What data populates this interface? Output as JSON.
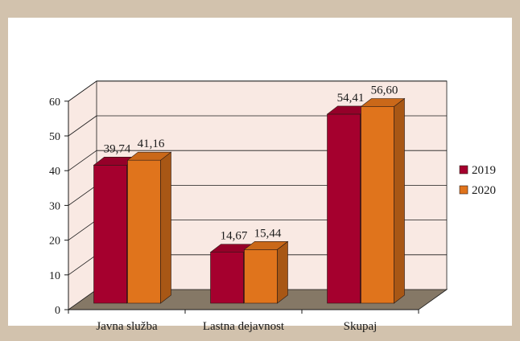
{
  "chart_data": {
    "type": "bar",
    "categories": [
      "Javna služba",
      "Lastna dejavnost",
      "Skupaj"
    ],
    "series": [
      {
        "name": "2019",
        "values": [
          39.74,
          14.67,
          54.41
        ],
        "labels": [
          "39,74",
          "14,67",
          "54,41"
        ],
        "color": "#a5002e"
      },
      {
        "name": "2020",
        "values": [
          41.16,
          15.44,
          56.6
        ],
        "labels": [
          "41,16",
          "15,44",
          "56,60"
        ],
        "color": "#e0741c"
      }
    ],
    "ylim": [
      0,
      60
    ],
    "yticks": [
      "0",
      "10",
      "20",
      "30",
      "40",
      "50",
      "60"
    ],
    "grid": true,
    "legend_position": "right",
    "colors": {
      "background": "#d2c2ad",
      "chart_area": "#f9e9e3",
      "floor": "#857866",
      "axis": "#1a1a1a"
    }
  }
}
